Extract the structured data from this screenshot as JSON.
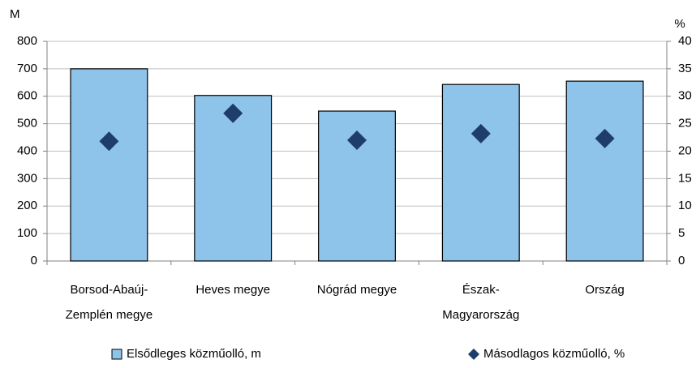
{
  "chart_data": {
    "type": "bar_scatter",
    "y_axis_label": "M",
    "y2_axis_label": "%",
    "categories": [
      [
        "Borsod-Abaúj-",
        "Zemplén megye"
      ],
      [
        "Heves megye"
      ],
      [
        "Nógrád megye"
      ],
      [
        "Észak-",
        "Magyarország"
      ],
      [
        "Ország"
      ]
    ],
    "series": [
      {
        "name": "Elsődleges közműolló, m",
        "color": "#8ec3ea",
        "values": [
          700,
          603,
          546,
          643,
          655
        ]
      },
      {
        "name": "Másodlagos közműolló, %",
        "color": "#1f3d6b",
        "axis": "y2",
        "values": [
          21.8,
          26.9,
          22.0,
          23.2,
          22.3
        ]
      }
    ],
    "ylim": [
      0,
      800
    ],
    "yticks": [
      0,
      100,
      200,
      300,
      400,
      500,
      600,
      700,
      800
    ],
    "y2lim": [
      0,
      40
    ],
    "y2ticks": [
      0,
      5,
      10,
      15,
      20,
      25,
      30,
      35,
      40
    ],
    "grid": true
  }
}
